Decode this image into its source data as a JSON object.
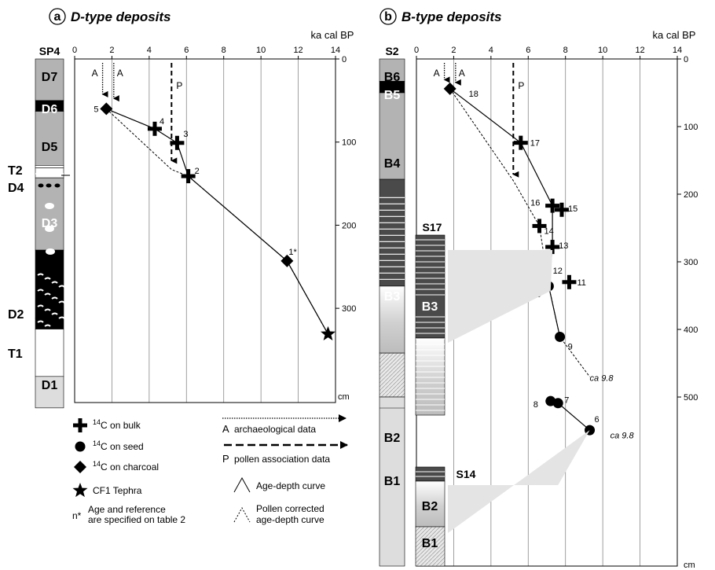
{
  "chart_data": [
    {
      "type": "scatter",
      "panel_letter": "a",
      "title": "D-type deposits",
      "xlabel": "ka cal BP",
      "ylabel": "cm",
      "xlim": [
        0,
        14
      ],
      "ylim": [
        0,
        350
      ],
      "x_ticks": [
        "0",
        "2",
        "4",
        "6",
        "8",
        "10",
        "12",
        "14"
      ],
      "y_ticks": [
        "0",
        "100",
        "200",
        "300"
      ],
      "column_name": "SP4",
      "units": [
        {
          "label": "D7",
          "top": 0,
          "bottom": 50,
          "style": "gray"
        },
        {
          "label": "D6",
          "top": 50,
          "bottom": 63,
          "style": "black"
        },
        {
          "label": "D5",
          "top": 63,
          "bottom": 128,
          "style": "gray"
        },
        {
          "label": "T2",
          "top": 128,
          "bottom": 131,
          "style": "white"
        },
        {
          "label": "D4",
          "top": 131,
          "bottom": 143,
          "style": "white"
        },
        {
          "label": "D3",
          "top": 143,
          "bottom": 230,
          "style": "gray"
        },
        {
          "label": "D2",
          "top": 230,
          "bottom": 312,
          "style": "black"
        },
        {
          "label": "T1",
          "top": 312,
          "bottom": 325,
          "style": "black"
        },
        {
          "label": "D1",
          "top": 325,
          "bottom": 382,
          "style": "white"
        }
      ],
      "series": [
        {
          "name": "14C on bulk",
          "marker": "cross",
          "points": [
            {
              "label": "4",
              "x": 4.3,
              "y": 84
            },
            {
              "label": "3",
              "x": 5.5,
              "y": 101
            },
            {
              "label": "2",
              "x": 6.1,
              "y": 141
            }
          ]
        },
        {
          "name": "14C on charcoal",
          "marker": "diamond",
          "points": [
            {
              "label": "5",
              "x": 1.7,
              "y": 60
            },
            {
              "label": "1*",
              "x": 11.4,
              "y": 243
            }
          ]
        },
        {
          "name": "CF1 Tephra",
          "marker": "star",
          "points": [
            {
              "label": "",
              "x": 13.6,
              "y": 331
            }
          ]
        }
      ],
      "age_depth_curve": [
        [
          1.7,
          60
        ],
        [
          4.3,
          84
        ],
        [
          5.5,
          101
        ],
        [
          6.1,
          141
        ],
        [
          11.4,
          243
        ],
        [
          13.6,
          331
        ]
      ],
      "pollen_corrected_curve": [
        [
          1.7,
          60
        ],
        [
          5.2,
          133
        ],
        [
          6.1,
          141
        ],
        [
          11.4,
          243
        ],
        [
          13.6,
          331
        ]
      ],
      "markers": [
        {
          "label": "A",
          "x": 1.5,
          "y_end": 50,
          "style": "dotted"
        },
        {
          "label": "A",
          "x": 2.1,
          "y_end": 55,
          "style": "dotted"
        },
        {
          "label": "P",
          "x": 5.2,
          "y_end": 130,
          "style": "dashed"
        }
      ]
    },
    {
      "type": "scatter",
      "panel_letter": "b",
      "title": "B-type deposits",
      "xlabel": "ka cal BP",
      "ylabel": "cm",
      "xlim": [
        0,
        14
      ],
      "ylim": [
        0,
        550
      ],
      "x_ticks": [
        "0",
        "2",
        "4",
        "6",
        "8",
        "10",
        "12",
        "14"
      ],
      "y_ticks": [
        "0",
        "100",
        "200",
        "300",
        "400",
        "500"
      ],
      "column_name": "S2",
      "units": [
        {
          "label": "B6",
          "top": 0,
          "bottom": 33,
          "style": "gray"
        },
        {
          "label": "B5",
          "top": 33,
          "bottom": 50,
          "style": "black"
        },
        {
          "label": "B4",
          "top": 50,
          "bottom": 178,
          "style": "gray"
        },
        {
          "label": "B3",
          "top": 178,
          "bottom": 336,
          "style": "dark-banded"
        },
        {
          "label": "B2",
          "top": 336,
          "bottom": 435,
          "style": "gradient"
        },
        {
          "label": "B1",
          "top": 435,
          "bottom": 500,
          "style": "hatched"
        }
      ],
      "subcolumns": [
        {
          "name": "S17",
          "units": [
            {
              "label": "B3",
              "top": 210,
              "bottom": 385
            }
          ]
        },
        {
          "name": "S14",
          "units": [
            {
              "label": "B2",
              "top": 475,
              "bottom": 520
            },
            {
              "label": "B1",
              "top": 520,
              "bottom": 555
            }
          ]
        }
      ],
      "series": [
        {
          "name": "14C on bulk",
          "marker": "cross",
          "points": [
            {
              "label": "17",
              "x": 5.6,
              "y": 124
            },
            {
              "label": "16",
              "x": 7.3,
              "y": 217
            },
            {
              "label": "15",
              "x": 7.8,
              "y": 223
            },
            {
              "label": "14",
              "x": 6.6,
              "y": 247
            },
            {
              "label": "13",
              "x": 7.3,
              "y": 278
            },
            {
              "label": "11",
              "x": 8.2,
              "y": 330
            }
          ]
        },
        {
          "name": "14C on seed",
          "marker": "circle",
          "points": [
            {
              "label": "12",
              "x": 6.9,
              "y": 322
            },
            {
              "label": "10",
              "x": 7.1,
              "y": 336
            },
            {
              "label": "9",
              "x": 7.7,
              "y": 411
            },
            {
              "label": "8",
              "x": 7.2,
              "y": 506
            },
            {
              "label": "7",
              "x": 7.6,
              "y": 509
            },
            {
              "label": "6",
              "x": 9.3,
              "y": 549
            }
          ]
        },
        {
          "name": "14C on charcoal",
          "marker": "diamond",
          "points": [
            {
              "label": "18",
              "x": 1.8,
              "y": 44
            }
          ]
        }
      ],
      "age_depth_curve": [
        [
          1.8,
          44
        ],
        [
          5.6,
          124
        ],
        [
          7.3,
          217
        ],
        [
          7.3,
          278
        ],
        [
          7.1,
          336
        ],
        [
          7.7,
          411
        ]
      ],
      "pollen_corrected_curve": [
        [
          1.8,
          44
        ],
        [
          5.2,
          180
        ],
        [
          6.6,
          247
        ],
        [
          7.1,
          336
        ],
        [
          7.7,
          411
        ],
        [
          9.3,
          470
        ]
      ],
      "s14_curve": [
        [
          7.2,
          506
        ],
        [
          7.6,
          509
        ],
        [
          9.3,
          549
        ]
      ],
      "markers": [
        {
          "label": "A",
          "x": 1.5,
          "y_end": 40,
          "style": "dotted"
        },
        {
          "label": "A",
          "x": 2.1,
          "y_end": 44,
          "style": "dotted"
        },
        {
          "label": "P",
          "x": 5.2,
          "y_end": 180,
          "style": "dashed"
        }
      ],
      "annotations": [
        {
          "text": "ca 9.8",
          "x": 9.3,
          "y": 476
        },
        {
          "text": "ca 9.8",
          "x": 10.4,
          "y": 561
        }
      ]
    }
  ],
  "legend": {
    "bulk": "C on bulk",
    "seed": "C on seed",
    "charcoal": "C on charcoal",
    "tephra": "CF1 Tephra",
    "iso_sup": "14",
    "n_star_symbol": "n*",
    "n_star_line1": "Age and reference",
    "n_star_line2": "are specified on table 2",
    "arch_letter": "A",
    "arch_text": "archaeological data",
    "pollen_letter": "P",
    "pollen_text": "pollen association data",
    "agedepth": "Age-depth curve",
    "corrected_line1": "Pollen corrected",
    "corrected_line2": "age-depth curve"
  },
  "colors": {
    "gray": "#b3b3b3",
    "dark": "#4a4a4a",
    "black": "#000000",
    "shade": "#e4e4e4"
  }
}
